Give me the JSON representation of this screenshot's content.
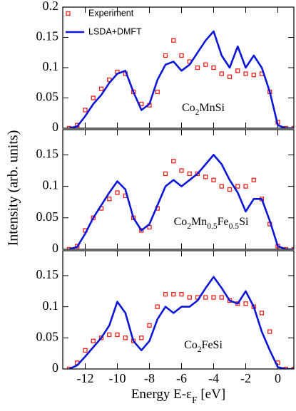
{
  "chart_data": [
    {
      "type": "line",
      "legend": "upper left",
      "x": [
        -13,
        -12.5,
        -12,
        -11.5,
        -11,
        -10.5,
        -10,
        -9.5,
        -9,
        -8.5,
        -8,
        -7.5,
        -7,
        -6.5,
        -6,
        -5.5,
        -5,
        -4.5,
        -4,
        -3.5,
        -3,
        -2.5,
        -2,
        -1.5,
        -1,
        -0.5,
        0,
        0.5,
        1
      ],
      "xlim": [
        -13.4,
        1.0
      ],
      "xticks": [
        -12,
        -10,
        -8,
        -6,
        -4,
        -2,
        0
      ],
      "ylim": [
        0,
        0.2
      ],
      "yticks": [
        0,
        0.05,
        0.1,
        0.15,
        0.2
      ],
      "annotation": [
        "Co",
        "2",
        "MnSi"
      ],
      "series": [
        {
          "name": "Experiment",
          "color": "#e8221a",
          "marker": "square",
          "values": [
            0,
            0.005,
            0.03,
            0.05,
            0.065,
            0.08,
            0.093,
            0.09,
            0.06,
            0.04,
            0.038,
            0.06,
            0.12,
            0.145,
            0.12,
            0.11,
            0.1,
            0.105,
            0.1,
            0.09,
            0.085,
            0.095,
            0.09,
            0.088,
            0.09,
            0.06,
            0.01,
            0,
            0
          ]
        },
        {
          "name": "LSDA+DMFT",
          "color": "#0b16d6",
          "values": [
            0,
            0.003,
            0.02,
            0.04,
            0.055,
            0.075,
            0.09,
            0.095,
            0.06,
            0.03,
            0.04,
            0.08,
            0.105,
            0.11,
            0.095,
            0.105,
            0.125,
            0.145,
            0.16,
            0.12,
            0.1,
            0.135,
            0.1,
            0.12,
            0.1,
            0.06,
            0.005,
            0,
            0
          ]
        }
      ]
    },
    {
      "type": "line",
      "ylabel": "Intensity (arb. units)",
      "x": [
        -13,
        -12.5,
        -12,
        -11.5,
        -11,
        -10.5,
        -10,
        -9.5,
        -9,
        -8.5,
        -8,
        -7.5,
        -7,
        -6.5,
        -6,
        -5.5,
        -5,
        -4.5,
        -4,
        -3.5,
        -3,
        -2.5,
        -2,
        -1.5,
        -1,
        -0.5,
        0,
        0.5,
        1
      ],
      "xlim": [
        -13.4,
        1.0
      ],
      "xticks": [
        -12,
        -10,
        -8,
        -6,
        -4,
        -2,
        0
      ],
      "ylim": [
        0,
        0.19
      ],
      "yticks": [
        0,
        0.05,
        0.1,
        0.15
      ],
      "annotation": [
        "Co",
        "2",
        "Mn",
        "0.5",
        "Fe",
        "0.5",
        "Si"
      ],
      "series": [
        {
          "color": "#e8221a",
          "marker": "square",
          "values": [
            0,
            0.005,
            0.03,
            0.05,
            0.065,
            0.08,
            0.09,
            0.085,
            0.05,
            0.03,
            0.035,
            0.065,
            0.12,
            0.14,
            0.125,
            0.12,
            0.12,
            0.115,
            0.11,
            0.1,
            0.095,
            0.1,
            0.1,
            0.11,
            0.08,
            0.04,
            0.005,
            0,
            0
          ]
        },
        {
          "color": "#0b16d6",
          "values": [
            0,
            0.004,
            0.025,
            0.05,
            0.07,
            0.09,
            0.108,
            0.095,
            0.05,
            0.03,
            0.04,
            0.07,
            0.1,
            0.11,
            0.1,
            0.11,
            0.12,
            0.135,
            0.15,
            0.135,
            0.11,
            0.09,
            0.06,
            0.08,
            0.08,
            0.045,
            0.005,
            0,
            0
          ]
        }
      ]
    },
    {
      "type": "line",
      "xlabel": [
        "Energy  E-ε",
        "F",
        " [eV]"
      ],
      "x": [
        -13,
        -12.5,
        -12,
        -11.5,
        -11,
        -10.5,
        -10,
        -9.5,
        -9,
        -8.5,
        -8,
        -7.5,
        -7,
        -6.5,
        -6,
        -5.5,
        -5,
        -4.5,
        -4,
        -3.5,
        -3,
        -2.5,
        -2,
        -1.5,
        -1,
        -0.5,
        0,
        0.5,
        1
      ],
      "xlim": [
        -13.4,
        1.0
      ],
      "xticks": [
        -12,
        -10,
        -8,
        -6,
        -4,
        -2,
        0
      ],
      "ylim": [
        0,
        0.19
      ],
      "yticks": [
        0,
        0.05,
        0.1,
        0.15
      ],
      "annotation": [
        "Co",
        "2",
        "FeSi"
      ],
      "series": [
        {
          "color": "#e8221a",
          "marker": "square",
          "values": [
            0,
            0.01,
            0.03,
            0.045,
            0.05,
            0.055,
            0.055,
            0.05,
            0.045,
            0.05,
            0.07,
            0.1,
            0.12,
            0.12,
            0.12,
            0.115,
            0.115,
            0.115,
            0.115,
            0.115,
            0.11,
            0.105,
            0.105,
            0.1,
            0.09,
            0.06,
            0.01,
            0,
            0
          ]
        },
        {
          "color": "#0b16d6",
          "values": [
            0,
            0.006,
            0.02,
            0.035,
            0.05,
            0.07,
            0.108,
            0.09,
            0.045,
            0.03,
            0.045,
            0.08,
            0.1,
            0.09,
            0.1,
            0.1,
            0.11,
            0.13,
            0.148,
            0.13,
            0.11,
            0.105,
            0.125,
            0.1,
            0.06,
            0.03,
            0.003,
            0,
            0
          ]
        }
      ]
    }
  ]
}
